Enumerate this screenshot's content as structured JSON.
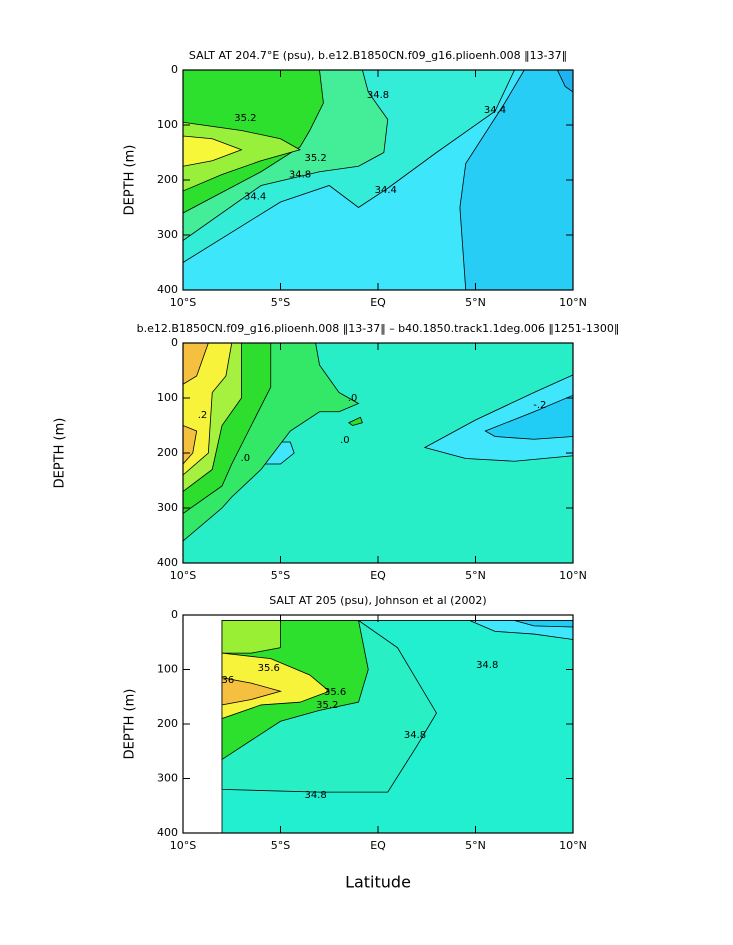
{
  "chart_data": [
    {
      "type": "contour",
      "title": "SALT AT 204.7°E (psu), b.e12.B1850CN.f09_g16.plioenh.008 ‖13-37‖",
      "ylabel": "DEPTH (m)",
      "xlim": [
        -10,
        10
      ],
      "ylim": [
        400,
        0
      ],
      "xticks": [
        {
          "value": -10,
          "label": "10°S"
        },
        {
          "value": -5,
          "label": "5°S"
        },
        {
          "value": 0,
          "label": "EQ"
        },
        {
          "value": 5,
          "label": "5°N"
        },
        {
          "value": 10,
          "label": "10°N"
        }
      ],
      "yticks": [
        0,
        100,
        200,
        300,
        400
      ],
      "regions": [
        {
          "color": "#3ee6fb",
          "lat": [
            -10,
            10,
            10,
            -10
          ],
          "depth": [
            0,
            0,
            400,
            400
          ]
        },
        {
          "color": "#28cdf6",
          "lat": [
            7.5,
            10,
            10,
            4.5,
            4.2,
            4.5,
            6.5
          ],
          "depth": [
            0,
            0,
            400,
            400,
            250,
            170,
            60
          ]
        },
        {
          "color": "#1fb4f0",
          "lat": [
            9.2,
            10,
            10,
            9.6
          ],
          "depth": [
            0,
            0,
            40,
            30
          ]
        },
        {
          "color": "#33edd8",
          "lat": [
            -10,
            7,
            6,
            3,
            0.5,
            -1,
            -2.5,
            -5,
            -10
          ],
          "depth": [
            0,
            0,
            75,
            150,
            215,
            250,
            210,
            240,
            350
          ]
        },
        {
          "color": "#44ee99",
          "lat": [
            -10,
            -0.8,
            -0.5,
            0.5,
            0.3,
            -1,
            -3,
            -6,
            -10
          ],
          "depth": [
            0,
            0,
            40,
            90,
            150,
            175,
            185,
            210,
            310
          ]
        },
        {
          "color": "#2ee02e",
          "lat": [
            -10,
            -3,
            -2.8,
            -3.5,
            -4,
            -6,
            -10
          ],
          "depth": [
            0,
            0,
            60,
            110,
            140,
            185,
            260
          ]
        },
        {
          "color": "#99f03a",
          "lat": [
            -10,
            -7,
            -5,
            -4,
            -6,
            -8,
            -10
          ],
          "depth": [
            95,
            110,
            125,
            145,
            165,
            190,
            220
          ]
        },
        {
          "color": "#f7f73a",
          "lat": [
            -10,
            -8.5,
            -7,
            -8.5,
            -10
          ],
          "depth": [
            120,
            125,
            145,
            165,
            175
          ]
        }
      ],
      "contour_labels": [
        {
          "x": -6.8,
          "y": 87,
          "value": 35.2
        },
        {
          "x": -3.2,
          "y": 160,
          "value": 35.2
        },
        {
          "x": -4.0,
          "y": 190,
          "value": 34.8
        },
        {
          "x": -6.3,
          "y": 230,
          "value": 34.4
        },
        {
          "x": 0,
          "y": 45,
          "value": 34.8
        },
        {
          "x": 0.4,
          "y": 218,
          "value": 34.4
        },
        {
          "x": 6,
          "y": 73,
          "value": 34.4
        }
      ]
    },
    {
      "type": "contour",
      "title": "b.e12.B1850CN.f09_g16.plioenh.008 ‖13-37‖ – b40.1850.track1.1deg.006 ‖1251-1300‖",
      "ylabel": "DEPTH (m)",
      "xlim": [
        -10,
        10
      ],
      "ylim": [
        400,
        0
      ],
      "xticks": [
        {
          "value": -10,
          "label": "10°S"
        },
        {
          "value": -5,
          "label": "5°S"
        },
        {
          "value": 0,
          "label": "EQ"
        },
        {
          "value": 5,
          "label": "5°N"
        },
        {
          "value": 10,
          "label": "10°N"
        }
      ],
      "yticks": [
        0,
        100,
        200,
        300,
        400
      ],
      "regions": [
        {
          "color": "#28eec8",
          "lat": [
            -10,
            10,
            10,
            -10
          ],
          "depth": [
            0,
            0,
            400,
            400
          ]
        },
        {
          "color": "#40e6fb",
          "lat": [
            2.4,
            5,
            8,
            10,
            10,
            7,
            4.5
          ],
          "depth": [
            190,
            140,
            90,
            58,
            205,
            215,
            210
          ]
        },
        {
          "color": "#22cdf5",
          "lat": [
            5.5,
            8,
            10,
            10,
            8,
            6
          ],
          "depth": [
            160,
            125,
            95,
            170,
            175,
            170
          ]
        },
        {
          "color": "#40e6fb",
          "lat": [
            -6.8,
            -5.5,
            -4.5,
            -4.3,
            -5,
            -6.5
          ],
          "depth": [
            205,
            180,
            180,
            200,
            220,
            220
          ]
        },
        {
          "color": "#33e866",
          "lat": [
            -10,
            -3.2,
            -3,
            -2,
            -1,
            -2,
            -3,
            -4.5,
            -6,
            -7.5,
            -8,
            -10
          ],
          "depth": [
            0,
            0,
            40,
            90,
            110,
            125,
            125,
            160,
            230,
            280,
            300,
            360
          ]
        },
        {
          "color": "#2ee02e",
          "lat": [
            -1.5,
            -0.9,
            -0.8,
            -1.3
          ],
          "depth": [
            145,
            135,
            145,
            150
          ]
        },
        {
          "color": "#2ede2e",
          "lat": [
            -10,
            -5.5,
            -5.5,
            -6.5,
            -7.5,
            -8,
            -10
          ],
          "depth": [
            0,
            0,
            80,
            150,
            220,
            260,
            310
          ]
        },
        {
          "color": "#a6f040",
          "lat": [
            -10,
            -7,
            -7,
            -8,
            -8.5,
            -10
          ],
          "depth": [
            0,
            0,
            100,
            150,
            230,
            270
          ]
        },
        {
          "color": "#f7f33a",
          "lat": [
            -10,
            -7.5,
            -7.8,
            -8.5,
            -8.7,
            -10
          ],
          "depth": [
            0,
            0,
            60,
            90,
            200,
            240
          ]
        },
        {
          "color": "#f5c040",
          "lat": [
            -10,
            -8.7,
            -9.3,
            -10
          ],
          "depth": [
            0,
            0,
            60,
            75
          ]
        },
        {
          "color": "#f5c040",
          "lat": [
            -10,
            -9.3,
            -9.5,
            -10
          ],
          "depth": [
            150,
            160,
            200,
            220
          ]
        }
      ],
      "contour_labels": [
        {
          "x": 8.3,
          "y": 113,
          "value": -0.2,
          "label": "-.2"
        },
        {
          "x": -9,
          "y": 131,
          "value": 0.2,
          "label": ".2"
        },
        {
          "x": -6.8,
          "y": 209,
          "value": 0,
          "label": ".0"
        },
        {
          "x": -1.3,
          "y": 100,
          "value": 0,
          "label": ".0"
        },
        {
          "x": -1.7,
          "y": 176,
          "value": 0,
          "label": ".0"
        }
      ]
    },
    {
      "type": "contour",
      "title": "SALT AT 205 (psu), Johnson et al (2002)",
      "ylabel": "DEPTH (m)",
      "xlabel": "Latitude",
      "xlim": [
        -10,
        10
      ],
      "ylim": [
        400,
        0
      ],
      "xticks": [
        {
          "value": -10,
          "label": "10°S"
        },
        {
          "value": -5,
          "label": "5°S"
        },
        {
          "value": 0,
          "label": "EQ"
        },
        {
          "value": 5,
          "label": "5°N"
        },
        {
          "value": 10,
          "label": "10°N"
        }
      ],
      "yticks": [
        0,
        100,
        200,
        300,
        400
      ],
      "regions": [
        {
          "color": "#22efd0",
          "lat": [
            -8,
            10,
            10,
            -8
          ],
          "depth": [
            10,
            10,
            400,
            400
          ]
        },
        {
          "color": "#28f0c4",
          "lat": [
            -8,
            -1,
            1,
            2,
            3,
            2,
            0.5,
            -3,
            -8
          ],
          "depth": [
            10,
            10,
            60,
            120,
            180,
            240,
            325,
            325,
            320
          ]
        },
        {
          "color": "#40e6fb",
          "lat": [
            4.7,
            10,
            10,
            8,
            6
          ],
          "depth": [
            10,
            10,
            45,
            35,
            30
          ]
        },
        {
          "color": "#22cdf5",
          "lat": [
            7,
            10,
            10,
            8
          ],
          "depth": [
            10,
            10,
            22,
            20
          ]
        },
        {
          "color": "#2ee02e",
          "lat": [
            -8,
            -1,
            -0.5,
            -1,
            -3,
            -5,
            -8
          ],
          "depth": [
            10,
            10,
            100,
            160,
            175,
            195,
            265
          ]
        },
        {
          "color": "#99ef33",
          "lat": [
            -8,
            -5,
            -5,
            -6.5,
            -8
          ],
          "depth": [
            10,
            10,
            60,
            70,
            70
          ]
        },
        {
          "color": "#f7f33a",
          "lat": [
            -8,
            -5.5,
            -3.5,
            -2.5,
            -4,
            -6,
            -8
          ],
          "depth": [
            70,
            80,
            110,
            140,
            160,
            165,
            190
          ]
        },
        {
          "color": "#f5c040",
          "lat": [
            -8,
            -6.5,
            -5,
            -6.5,
            -8
          ],
          "depth": [
            115,
            125,
            140,
            155,
            165
          ]
        }
      ],
      "contour_labels": [
        {
          "x": -5.6,
          "y": 97,
          "value": 35.6
        },
        {
          "x": -7.7,
          "y": 119,
          "value": 36
        },
        {
          "x": -2.2,
          "y": 141,
          "value": 35.6
        },
        {
          "x": -2.6,
          "y": 165,
          "value": 35.2
        },
        {
          "x": -3.2,
          "y": 330,
          "value": 34.8
        },
        {
          "x": 1.9,
          "y": 220,
          "value": 34.8
        },
        {
          "x": 5.6,
          "y": 92,
          "value": 34.8
        }
      ]
    }
  ]
}
